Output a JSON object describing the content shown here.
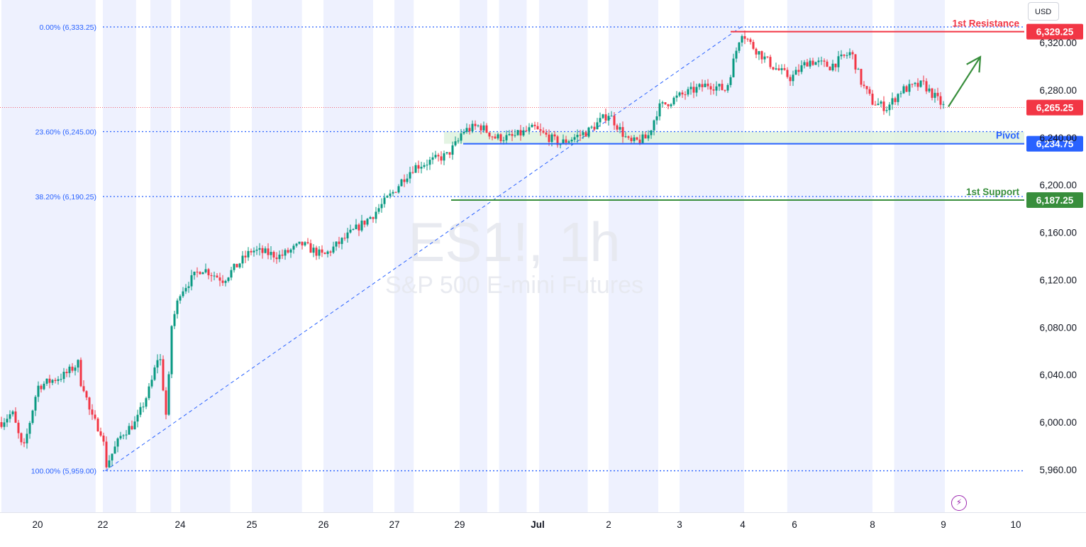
{
  "currency_label": "USD",
  "watermark": {
    "symbol": "ES1!, 1h",
    "name": "S&P 500 E-mini Futures"
  },
  "colors": {
    "up": "#089981",
    "down": "#f23645",
    "resistance": "#f23645",
    "pivot": "#2962ff",
    "support": "#388e3c",
    "fib_line": "#2962ff",
    "session_band": "#eef1fe",
    "arrow": "#388e3c"
  },
  "bolt_icon": "lightning-bolt-icon",
  "chart_data": {
    "type": "candlestick",
    "title": "",
    "y_axis": {
      "min": 5936,
      "max": 6344,
      "ticks": [
        5960,
        6000,
        6040,
        6080,
        6120,
        6160,
        6200,
        6240,
        6280,
        6320
      ],
      "tick_labels": [
        "5,960.00",
        "6,000.00",
        "6,040.00",
        "6,080.00",
        "6,120.00",
        "6,160.00",
        "6,200.00",
        "6,240.00",
        "6,280.00",
        "6,320.00"
      ]
    },
    "x_axis": {
      "ticks": [
        {
          "label": "20",
          "day": 20
        },
        {
          "label": "22",
          "day": 22
        },
        {
          "label": "24",
          "day": 24
        },
        {
          "label": "25",
          "day": 25
        },
        {
          "label": "26",
          "day": 26
        },
        {
          "label": "27",
          "day": 27
        },
        {
          "label": "29",
          "day": 29
        },
        {
          "label": "Jul",
          "day": 30.98
        },
        {
          "label": "2",
          "day": 32
        },
        {
          "label": "3",
          "day": 33
        },
        {
          "label": "4",
          "day": 33.88
        },
        {
          "label": "6",
          "day": 34.6
        },
        {
          "label": "8",
          "day": 35.7
        },
        {
          "label": "9",
          "day": 36.68
        },
        {
          "label": "10",
          "day": 37.7
        }
      ]
    },
    "session_bands": [
      [
        19.0,
        20.6
      ],
      [
        21.0,
        21.7
      ],
      [
        22.0,
        22.7
      ],
      [
        23.0,
        23.7
      ],
      [
        24.0,
        24.7
      ],
      [
        25.0,
        25.7
      ],
      [
        26.0,
        26.7
      ],
      [
        27.0,
        27.7
      ],
      [
        29.0,
        29.7
      ],
      [
        30.0,
        30.7
      ],
      [
        31.0,
        31.7
      ],
      [
        32.0,
        32.7
      ],
      [
        33.0,
        33.9
      ],
      [
        34.5,
        35.7
      ],
      [
        36.0,
        36.7
      ]
    ],
    "fib_levels": [
      {
        "label": "0.00% (6,333.25)",
        "value": 6333.25
      },
      {
        "label": "23.60% (6,245.00)",
        "value": 6245.0
      },
      {
        "label": "38.20% (6,190.25)",
        "value": 6190.25
      },
      {
        "label": "100.00% (5,959.00)",
        "value": 5959.0
      }
    ],
    "fib_trend": {
      "from": {
        "day": 22.05,
        "value": 5959.0
      },
      "to": {
        "day": 33.86,
        "value": 6333.25
      }
    },
    "levels": [
      {
        "name": "1st Resistance",
        "value": 6329.25,
        "price_label": "6,329.25",
        "role": "resistance"
      },
      {
        "name": "Pivot",
        "value": 6234.75,
        "price_label": "6,234.75",
        "role": "pivot"
      },
      {
        "name": "1st Support",
        "value": 6187.25,
        "price_label": "6,187.25",
        "role": "support"
      }
    ],
    "pivot_zone": [
      6234.75,
      6245.0
    ],
    "last_price": {
      "value": 6265.25,
      "label": "6,265.25"
    },
    "projection_arrow": {
      "from": {
        "day": 36.75,
        "value": 6266
      },
      "to": {
        "day": 37.2,
        "value": 6308
      }
    },
    "series": [
      {
        "key_days": [
          19.0,
          19.3,
          19.6,
          20.0,
          20.4,
          20.6,
          21.2,
          21.5,
          22.0,
          22.05,
          22.4,
          22.7,
          23.0,
          23.3,
          23.55,
          23.7,
          24.0,
          24.3,
          24.6,
          25.0,
          25.4,
          25.7,
          26.0,
          26.3,
          26.7,
          27.0,
          27.3,
          27.7,
          28.9,
          29.05,
          29.5,
          29.9,
          30.3,
          30.9,
          31.3,
          31.7,
          32.0,
          32.3,
          32.55,
          32.7,
          33.0,
          33.4,
          33.65,
          33.86,
          34.0,
          34.3,
          34.55,
          34.8,
          35.1,
          35.4,
          35.55,
          35.7,
          35.9,
          36.1,
          36.4,
          36.7
        ],
        "key_values": [
          6000,
          6008,
          5975,
          6030,
          6040,
          6050,
          6030,
          6005,
          5990,
          5962,
          5990,
          6000,
          6030,
          6060,
          6000,
          6080,
          6110,
          6130,
          6120,
          6145,
          6140,
          6150,
          6140,
          6155,
          6175,
          6195,
          6205,
          6215,
          6225,
          6245,
          6250,
          6240,
          6240,
          6248,
          6235,
          6245,
          6260,
          6235,
          6240,
          6265,
          6275,
          6285,
          6280,
          6330,
          6318,
          6300,
          6290,
          6305,
          6300,
          6312,
          6285,
          6270,
          6265,
          6280,
          6285,
          6265
        ]
      }
    ]
  }
}
